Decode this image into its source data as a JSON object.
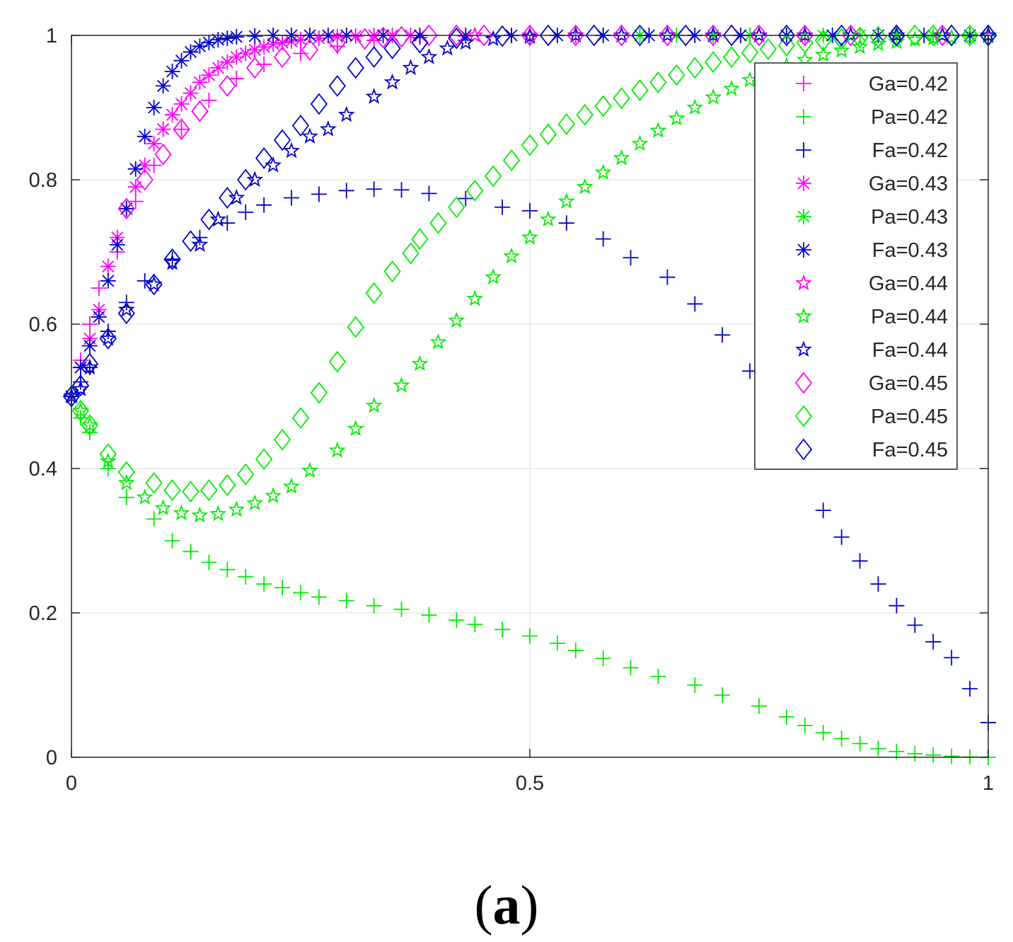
{
  "chart_data": {
    "type": "scatter",
    "title": "",
    "xlabel": "",
    "ylabel": "",
    "xlim": [
      0,
      1
    ],
    "ylim": [
      0,
      1
    ],
    "grid": true,
    "legend_position": "top-right",
    "x_ticks": [
      {
        "value": 0,
        "label": "0"
      },
      {
        "value": 0.5,
        "label": "0.5"
      },
      {
        "value": 1,
        "label": "1"
      }
    ],
    "y_ticks": [
      {
        "value": 0,
        "label": "0"
      },
      {
        "value": 0.2,
        "label": "0.2"
      },
      {
        "value": 0.4,
        "label": "0.4"
      },
      {
        "value": 0.6,
        "label": "0.6"
      },
      {
        "value": 0.8,
        "label": "0.8"
      },
      {
        "value": 1,
        "label": "1"
      }
    ],
    "caption": {
      "open": "(",
      "letter": "a",
      "close": ")"
    },
    "series": [
      {
        "name": "Ga=0.42",
        "color": "#ff00ff",
        "marker": "plus",
        "x": [
          0,
          0.01,
          0.02,
          0.03,
          0.05,
          0.07,
          0.09,
          0.12,
          0.15,
          0.18,
          0.21,
          0.25,
          0.29,
          0.33,
          0.38,
          0.43,
          0.48,
          0.55,
          0.62,
          0.7,
          0.8,
          0.9,
          1.0
        ],
        "y": [
          0.5,
          0.55,
          0.6,
          0.65,
          0.7,
          0.77,
          0.82,
          0.87,
          0.91,
          0.94,
          0.96,
          0.975,
          0.985,
          0.993,
          0.997,
          0.999,
          1,
          1,
          1,
          1,
          1,
          1,
          1
        ]
      },
      {
        "name": "Pa=0.42",
        "color": "#00ee00",
        "marker": "plus",
        "x": [
          0,
          0.01,
          0.02,
          0.04,
          0.06,
          0.09,
          0.11,
          0.13,
          0.15,
          0.17,
          0.19,
          0.21,
          0.23,
          0.25,
          0.27,
          0.3,
          0.33,
          0.36,
          0.39,
          0.42,
          0.44,
          0.47,
          0.5,
          0.53,
          0.55,
          0.58,
          0.61,
          0.64,
          0.68,
          0.71,
          0.75,
          0.78,
          0.8,
          0.82,
          0.84,
          0.86,
          0.88,
          0.9,
          0.92,
          0.94,
          0.96,
          0.98,
          1.0
        ],
        "y": [
          0.5,
          0.47,
          0.45,
          0.4,
          0.36,
          0.33,
          0.3,
          0.285,
          0.27,
          0.26,
          0.25,
          0.24,
          0.235,
          0.228,
          0.222,
          0.217,
          0.21,
          0.205,
          0.197,
          0.19,
          0.184,
          0.177,
          0.168,
          0.158,
          0.148,
          0.137,
          0.124,
          0.112,
          0.1,
          0.086,
          0.071,
          0.056,
          0.044,
          0.034,
          0.026,
          0.019,
          0.012,
          0.008,
          0.005,
          0.003,
          0.0015,
          0.0005,
          0
        ]
      },
      {
        "name": "Fa=0.42",
        "color": "#0000cc",
        "marker": "plus",
        "x": [
          0,
          0.01,
          0.02,
          0.04,
          0.06,
          0.08,
          0.11,
          0.14,
          0.17,
          0.19,
          0.21,
          0.24,
          0.27,
          0.3,
          0.33,
          0.36,
          0.39,
          0.43,
          0.47,
          0.5,
          0.54,
          0.58,
          0.61,
          0.65,
          0.68,
          0.71,
          0.74,
          0.77,
          0.8,
          0.82,
          0.84,
          0.86,
          0.88,
          0.9,
          0.92,
          0.94,
          0.96,
          0.98,
          1.0
        ],
        "y": [
          0.5,
          0.52,
          0.54,
          0.59,
          0.63,
          0.66,
          0.69,
          0.72,
          0.74,
          0.755,
          0.765,
          0.775,
          0.78,
          0.785,
          0.787,
          0.786,
          0.781,
          0.774,
          0.762,
          0.757,
          0.74,
          0.718,
          0.692,
          0.665,
          0.628,
          0.585,
          0.535,
          0.475,
          0.41,
          0.342,
          0.305,
          0.272,
          0.24,
          0.21,
          0.183,
          0.16,
          0.138,
          0.095,
          0.048
        ]
      },
      {
        "name": "Ga=0.43",
        "color": "#ff00ff",
        "marker": "asterisk",
        "x": [
          0,
          0.01,
          0.02,
          0.03,
          0.04,
          0.05,
          0.06,
          0.07,
          0.08,
          0.09,
          0.1,
          0.11,
          0.12,
          0.13,
          0.14,
          0.15,
          0.16,
          0.17,
          0.18,
          0.19,
          0.2,
          0.21,
          0.22,
          0.23,
          0.24,
          0.25,
          0.27,
          0.29,
          0.31,
          0.33,
          0.35,
          0.37
        ],
        "y": [
          0.5,
          0.54,
          0.58,
          0.62,
          0.68,
          0.72,
          0.76,
          0.79,
          0.82,
          0.85,
          0.87,
          0.89,
          0.905,
          0.92,
          0.935,
          0.945,
          0.955,
          0.963,
          0.97,
          0.975,
          0.98,
          0.984,
          0.988,
          0.99,
          0.992,
          0.994,
          0.996,
          0.998,
          0.999,
          1,
          1,
          1
        ]
      },
      {
        "name": "Pa=0.43",
        "color": "#00ee00",
        "marker": "asterisk",
        "x": [
          0.58,
          0.62,
          0.66,
          0.7,
          0.74,
          0.78,
          0.82,
          0.86,
          0.9,
          0.94,
          0.98
        ],
        "y": [
          1,
          1,
          1,
          1,
          1,
          1,
          1,
          1,
          1,
          1,
          1
        ]
      },
      {
        "name": "Fa=0.43",
        "color": "#0000cc",
        "marker": "asterisk",
        "x": [
          0,
          0.01,
          0.02,
          0.03,
          0.04,
          0.05,
          0.06,
          0.07,
          0.08,
          0.09,
          0.1,
          0.11,
          0.12,
          0.13,
          0.14,
          0.15,
          0.16,
          0.17,
          0.18,
          0.2,
          0.22,
          0.24,
          0.26,
          0.28,
          0.3,
          0.34,
          0.38,
          0.43,
          0.48,
          0.53,
          0.58,
          0.63,
          0.68,
          0.73,
          0.78,
          0.83,
          0.88,
          0.93,
          0.98
        ],
        "y": [
          0.5,
          0.54,
          0.57,
          0.61,
          0.66,
          0.71,
          0.76,
          0.815,
          0.86,
          0.9,
          0.93,
          0.95,
          0.965,
          0.977,
          0.985,
          0.99,
          0.994,
          0.996,
          0.998,
          0.999,
          1,
          1,
          1,
          1,
          1,
          1,
          1,
          1,
          1,
          1,
          1,
          1,
          1,
          1,
          1,
          1,
          1,
          1,
          1
        ]
      },
      {
        "name": "Ga=0.44",
        "color": "#ff00ff",
        "marker": "star",
        "x": [
          0.44,
          0.5,
          0.55,
          0.6,
          0.65,
          0.7,
          0.75,
          0.8,
          0.85,
          0.9,
          0.95,
          1.0
        ],
        "y": [
          1,
          1,
          1,
          1,
          1,
          1,
          1,
          1,
          1,
          1,
          1,
          1
        ]
      },
      {
        "name": "Pa=0.44",
        "color": "#00ee00",
        "marker": "star",
        "x": [
          0,
          0.01,
          0.02,
          0.04,
          0.06,
          0.08,
          0.1,
          0.12,
          0.14,
          0.16,
          0.18,
          0.2,
          0.22,
          0.24,
          0.26,
          0.29,
          0.31,
          0.33,
          0.36,
          0.38,
          0.4,
          0.42,
          0.44,
          0.46,
          0.48,
          0.5,
          0.52,
          0.54,
          0.56,
          0.58,
          0.6,
          0.62,
          0.64,
          0.66,
          0.68,
          0.7,
          0.72,
          0.74,
          0.76,
          0.78,
          0.8,
          0.82,
          0.84,
          0.86,
          0.88,
          0.9,
          0.92,
          0.94,
          0.96,
          0.98,
          1.0
        ],
        "y": [
          0.5,
          0.48,
          0.46,
          0.41,
          0.38,
          0.36,
          0.345,
          0.338,
          0.335,
          0.337,
          0.343,
          0.352,
          0.362,
          0.375,
          0.397,
          0.425,
          0.455,
          0.487,
          0.515,
          0.545,
          0.575,
          0.605,
          0.635,
          0.665,
          0.694,
          0.72,
          0.745,
          0.77,
          0.79,
          0.81,
          0.83,
          0.85,
          0.868,
          0.885,
          0.9,
          0.914,
          0.926,
          0.938,
          0.948,
          0.958,
          0.966,
          0.973,
          0.979,
          0.984,
          0.988,
          0.991,
          0.994,
          0.996,
          0.997,
          0.998,
          0.999
        ]
      },
      {
        "name": "Fa=0.44",
        "color": "#0000cc",
        "marker": "star",
        "x": [
          0,
          0.01,
          0.02,
          0.04,
          0.06,
          0.09,
          0.11,
          0.14,
          0.16,
          0.18,
          0.2,
          0.22,
          0.24,
          0.26,
          0.28,
          0.3,
          0.33,
          0.35,
          0.37,
          0.39,
          0.41,
          0.43,
          0.46,
          0.5,
          0.55,
          0.6,
          0.65,
          0.7,
          0.75,
          0.8,
          0.85,
          0.9,
          0.95,
          1.0
        ],
        "y": [
          0.5,
          0.51,
          0.54,
          0.58,
          0.62,
          0.655,
          0.685,
          0.71,
          0.745,
          0.775,
          0.8,
          0.82,
          0.84,
          0.86,
          0.87,
          0.89,
          0.915,
          0.935,
          0.955,
          0.97,
          0.982,
          0.99,
          0.995,
          0.998,
          1,
          1,
          1,
          1,
          1,
          1,
          1,
          1,
          1,
          1
        ]
      },
      {
        "name": "Ga=0.45",
        "color": "#ff00ff",
        "marker": "diamond",
        "x": [
          0.06,
          0.08,
          0.1,
          0.12,
          0.14,
          0.17,
          0.2,
          0.23,
          0.26,
          0.29,
          0.32,
          0.34,
          0.36,
          0.39,
          0.42,
          0.45,
          0.5,
          0.55,
          0.6,
          0.65,
          0.7,
          0.75,
          0.8,
          0.85,
          0.9,
          0.95,
          1.0
        ],
        "y": [
          0.76,
          0.8,
          0.835,
          0.87,
          0.895,
          0.93,
          0.955,
          0.97,
          0.98,
          0.99,
          0.995,
          0.997,
          0.998,
          1,
          1,
          1,
          1,
          1,
          1,
          1,
          1,
          1,
          1,
          1,
          1,
          1,
          1
        ]
      },
      {
        "name": "Pa=0.45",
        "color": "#00ee00",
        "marker": "diamond",
        "x": [
          0,
          0.01,
          0.02,
          0.04,
          0.06,
          0.09,
          0.11,
          0.13,
          0.15,
          0.17,
          0.19,
          0.21,
          0.23,
          0.25,
          0.27,
          0.29,
          0.31,
          0.33,
          0.35,
          0.37,
          0.38,
          0.4,
          0.42,
          0.44,
          0.46,
          0.48,
          0.5,
          0.52,
          0.54,
          0.56,
          0.58,
          0.6,
          0.62,
          0.64,
          0.66,
          0.68,
          0.7,
          0.72,
          0.74,
          0.76,
          0.78,
          0.8,
          0.82,
          0.84,
          0.86,
          0.88,
          0.9,
          0.92,
          0.94,
          0.96,
          0.98,
          1.0
        ],
        "y": [
          0.5,
          0.48,
          0.46,
          0.42,
          0.395,
          0.38,
          0.37,
          0.368,
          0.37,
          0.377,
          0.392,
          0.413,
          0.44,
          0.47,
          0.505,
          0.548,
          0.596,
          0.643,
          0.673,
          0.698,
          0.718,
          0.74,
          0.762,
          0.785,
          0.805,
          0.827,
          0.848,
          0.863,
          0.877,
          0.89,
          0.902,
          0.913,
          0.924,
          0.935,
          0.945,
          0.955,
          0.963,
          0.97,
          0.976,
          0.981,
          0.986,
          0.99,
          0.993,
          0.995,
          0.997,
          0.998,
          0.999,
          1,
          1,
          1,
          1,
          1
        ]
      },
      {
        "name": "Fa=0.45",
        "color": "#0000cc",
        "marker": "diamond",
        "x": [
          0,
          0.01,
          0.02,
          0.04,
          0.06,
          0.09,
          0.11,
          0.13,
          0.15,
          0.17,
          0.19,
          0.21,
          0.23,
          0.25,
          0.27,
          0.29,
          0.31,
          0.33,
          0.35,
          0.38,
          0.42,
          0.47,
          0.52,
          0.57,
          0.62,
          0.67,
          0.72,
          0.78,
          0.84,
          0.9,
          0.96,
          1.0
        ],
        "y": [
          0.5,
          0.515,
          0.545,
          0.58,
          0.615,
          0.655,
          0.69,
          0.715,
          0.745,
          0.775,
          0.8,
          0.83,
          0.855,
          0.875,
          0.905,
          0.93,
          0.955,
          0.97,
          0.982,
          0.99,
          0.996,
          0.999,
          1,
          1,
          1,
          1,
          1,
          1,
          1,
          1,
          1,
          1
        ]
      }
    ]
  }
}
